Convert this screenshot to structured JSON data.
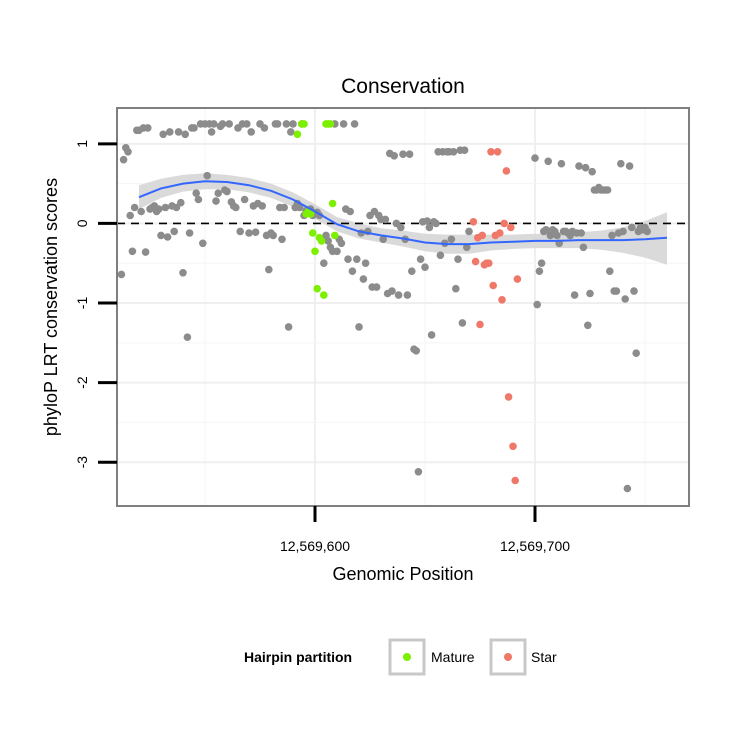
{
  "chart_data": {
    "type": "scatter",
    "title": "Conservation",
    "xlabel": "Genomic Position",
    "ylabel": "phyloP LRT conservation scores",
    "xlim": [
      12569510,
      12569770
    ],
    "ylim": [
      -3.55,
      1.45
    ],
    "x_ticks": [
      {
        "value": 12569600,
        "label": "12,569,600"
      },
      {
        "value": 12569700,
        "label": "12,569,700"
      }
    ],
    "y_ticks": [
      {
        "value": 1,
        "label": "1"
      },
      {
        "value": 0,
        "label": "0"
      },
      {
        "value": -1,
        "label": "-1"
      },
      {
        "value": -2,
        "label": "-2"
      },
      {
        "value": -3,
        "label": "-3"
      }
    ],
    "grid": true,
    "reference_line": {
      "y": 0,
      "style": "dashed"
    },
    "legend": {
      "title": "Hairpin partition",
      "position": "bottom",
      "entries": [
        {
          "label": "Mature",
          "color": "#7cf000"
        },
        {
          "label": "Star",
          "color": "#f07868"
        }
      ]
    },
    "colors": {
      "other": "#8c8c8c",
      "mature": "#7cf000",
      "star": "#f07868",
      "smooth_line": "#3366ff",
      "confidence_band": "#d6d6d6"
    },
    "smooth_line": {
      "x": [
        12569520,
        12569530,
        12569540,
        12569550,
        12569560,
        12569570,
        12569580,
        12569590,
        12569600,
        12569610,
        12569620,
        12569630,
        12569640,
        12569650,
        12569660,
        12569670,
        12569680,
        12569690,
        12569700,
        12569710,
        12569720,
        12569730,
        12569740,
        12569750,
        12569760
      ],
      "y": [
        0.33,
        0.44,
        0.5,
        0.53,
        0.52,
        0.48,
        0.41,
        0.3,
        0.15,
        -0.01,
        -0.1,
        -0.15,
        -0.19,
        -0.24,
        -0.26,
        -0.26,
        -0.24,
        -0.23,
        -0.22,
        -0.22,
        -0.21,
        -0.21,
        -0.21,
        -0.2,
        -0.18
      ],
      "lower": [
        0.18,
        0.32,
        0.4,
        0.43,
        0.43,
        0.39,
        0.32,
        0.21,
        0.06,
        -0.1,
        -0.19,
        -0.24,
        -0.29,
        -0.35,
        -0.38,
        -0.38,
        -0.34,
        -0.32,
        -0.31,
        -0.31,
        -0.31,
        -0.33,
        -0.37,
        -0.43,
        -0.52
      ],
      "upper": [
        0.48,
        0.56,
        0.61,
        0.63,
        0.61,
        0.57,
        0.5,
        0.39,
        0.24,
        0.08,
        0.0,
        -0.06,
        -0.09,
        -0.13,
        -0.14,
        -0.14,
        -0.14,
        -0.14,
        -0.13,
        -0.13,
        -0.11,
        -0.09,
        -0.05,
        0.03,
        0.14
      ]
    },
    "series": [
      {
        "group": "other",
        "points": [
          [
            12569512,
            -0.64
          ],
          [
            12569513,
            0.8
          ],
          [
            12569514,
            0.95
          ],
          [
            12569515,
            0.9
          ],
          [
            12569516,
            0.1
          ],
          [
            12569517,
            -0.35
          ],
          [
            12569518,
            0.2
          ],
          [
            12569519,
            1.17
          ],
          [
            12569520,
            1.17
          ],
          [
            12569521,
            0.15
          ],
          [
            12569522,
            1.2
          ],
          [
            12569523,
            -0.36
          ],
          [
            12569524,
            1.2
          ],
          [
            12569525,
            0.18
          ],
          [
            12569526,
            0.2
          ],
          [
            12569527,
            0.22
          ],
          [
            12569528,
            0.15
          ],
          [
            12569529,
            0.18
          ],
          [
            12569530,
            -0.15
          ],
          [
            12569531,
            1.12
          ],
          [
            12569532,
            0.2
          ],
          [
            12569533,
            -0.17
          ],
          [
            12569534,
            1.15
          ],
          [
            12569535,
            0.22
          ],
          [
            12569536,
            -0.1
          ],
          [
            12569537,
            0.2
          ],
          [
            12569538,
            1.15
          ],
          [
            12569539,
            0.26
          ],
          [
            12569540,
            -0.62
          ],
          [
            12569541,
            1.12
          ],
          [
            12569542,
            -1.43
          ],
          [
            12569543,
            -0.12
          ],
          [
            12569544,
            1.2
          ],
          [
            12569545,
            1.2
          ],
          [
            12569546,
            0.38
          ],
          [
            12569547,
            0.3
          ],
          [
            12569548,
            1.25
          ],
          [
            12569549,
            -0.25
          ],
          [
            12569550,
            1.25
          ],
          [
            12569551,
            0.6
          ],
          [
            12569552,
            1.25
          ],
          [
            12569553,
            1.15
          ],
          [
            12569554,
            1.25
          ],
          [
            12569555,
            0.28
          ],
          [
            12569556,
            0.38
          ],
          [
            12569557,
            1.22
          ],
          [
            12569558,
            1.25
          ],
          [
            12569559,
            0.42
          ],
          [
            12569560,
            0.4
          ],
          [
            12569561,
            1.25
          ],
          [
            12569562,
            0.27
          ],
          [
            12569563,
            0.22
          ],
          [
            12569564,
            0.2
          ],
          [
            12569565,
            1.2
          ],
          [
            12569566,
            -0.1
          ],
          [
            12569567,
            1.25
          ],
          [
            12569568,
            0.3
          ],
          [
            12569569,
            1.25
          ],
          [
            12569570,
            -0.12
          ],
          [
            12569571,
            1.15
          ],
          [
            12569572,
            0.22
          ],
          [
            12569573,
            -0.11
          ],
          [
            12569574,
            0.25
          ],
          [
            12569575,
            1.25
          ],
          [
            12569576,
            0.22
          ],
          [
            12569577,
            1.2
          ],
          [
            12569578,
            -0.15
          ],
          [
            12569579,
            -0.58
          ],
          [
            12569580,
            -0.12
          ],
          [
            12569581,
            -0.15
          ],
          [
            12569582,
            1.25
          ],
          [
            12569583,
            1.25
          ],
          [
            12569584,
            0.2
          ],
          [
            12569585,
            -0.2
          ],
          [
            12569586,
            0.2
          ],
          [
            12569587,
            1.25
          ],
          [
            12569588,
            -1.3
          ],
          [
            12569589,
            1.15
          ],
          [
            12569590,
            1.25
          ],
          [
            12569591,
            0.2
          ],
          [
            12569592,
            0.25
          ],
          [
            12569593,
            0.2
          ],
          [
            12569594,
            1.25
          ],
          [
            12569595,
            0.1
          ],
          [
            12569596,
            0.16
          ],
          [
            12569597,
            0.15
          ],
          [
            12569598,
            0.18
          ],
          [
            12569599,
            0.1
          ],
          [
            12569600,
            0.12
          ],
          [
            12569601,
            0.14
          ],
          [
            12569602,
            0.1
          ],
          [
            12569603,
            -0.2
          ],
          [
            12569604,
            -0.5
          ],
          [
            12569605,
            -0.15
          ],
          [
            12569606,
            -0.22
          ],
          [
            12569607,
            -0.3
          ],
          [
            12569608,
            -0.35
          ],
          [
            12569609,
            1.25
          ],
          [
            12569610,
            -0.35
          ],
          [
            12569611,
            -0.2
          ],
          [
            12569612,
            -0.25
          ],
          [
            12569613,
            1.25
          ],
          [
            12569614,
            0.18
          ],
          [
            12569615,
            -0.45
          ],
          [
            12569616,
            0.15
          ],
          [
            12569617,
            -0.6
          ],
          [
            12569618,
            1.25
          ],
          [
            12569619,
            -0.45
          ],
          [
            12569620,
            -1.3
          ],
          [
            12569621,
            -0.12
          ],
          [
            12569622,
            -0.7
          ],
          [
            12569623,
            -0.5
          ],
          [
            12569624,
            -0.1
          ],
          [
            12569625,
            0.1
          ],
          [
            12569626,
            -0.8
          ],
          [
            12569627,
            0.15
          ],
          [
            12569628,
            -0.8
          ],
          [
            12569629,
            0.1
          ],
          [
            12569630,
            0.05
          ],
          [
            12569631,
            -0.2
          ],
          [
            12569632,
            0.05
          ],
          [
            12569633,
            -0.88
          ],
          [
            12569634,
            0.88
          ],
          [
            12569635,
            -0.85
          ],
          [
            12569636,
            0.85
          ],
          [
            12569637,
            0.0
          ],
          [
            12569638,
            -0.9
          ],
          [
            12569639,
            -0.05
          ],
          [
            12569640,
            0.87
          ],
          [
            12569641,
            -0.2
          ],
          [
            12569642,
            -0.9
          ],
          [
            12569643,
            0.87
          ],
          [
            12569644,
            -0.6
          ],
          [
            12569645,
            -1.58
          ],
          [
            12569646,
            -1.6
          ],
          [
            12569647,
            -3.12
          ],
          [
            12569648,
            -0.45
          ],
          [
            12569649,
            0.02
          ],
          [
            12569650,
            -0.55
          ],
          [
            12569651,
            0.03
          ],
          [
            12569652,
            -0.05
          ],
          [
            12569653,
            -1.4
          ],
          [
            12569654,
            0.02
          ],
          [
            12569655,
            0.0
          ],
          [
            12569656,
            0.9
          ],
          [
            12569657,
            -0.4
          ],
          [
            12569658,
            0.9
          ],
          [
            12569659,
            -0.25
          ],
          [
            12569660,
            0.9
          ],
          [
            12569661,
            0.9
          ],
          [
            12569662,
            -0.2
          ],
          [
            12569663,
            0.9
          ],
          [
            12569664,
            -0.82
          ],
          [
            12569665,
            -0.45
          ],
          [
            12569666,
            0.92
          ],
          [
            12569667,
            -1.25
          ],
          [
            12569668,
            0.92
          ],
          [
            12569669,
            -0.3
          ],
          [
            12569670,
            -0.1
          ],
          [
            12569700,
            0.82
          ],
          [
            12569701,
            -1.02
          ],
          [
            12569702,
            -0.6
          ],
          [
            12569703,
            -0.5
          ],
          [
            12569704,
            -0.1
          ],
          [
            12569705,
            -0.08
          ],
          [
            12569706,
            0.78
          ],
          [
            12569707,
            -0.15
          ],
          [
            12569708,
            -0.08
          ],
          [
            12569709,
            -0.1
          ],
          [
            12569710,
            -0.15
          ],
          [
            12569711,
            -0.25
          ],
          [
            12569712,
            0.75
          ],
          [
            12569713,
            -0.1
          ],
          [
            12569714,
            -0.1
          ],
          [
            12569715,
            -0.12
          ],
          [
            12569716,
            -0.15
          ],
          [
            12569717,
            -0.1
          ],
          [
            12569718,
            -0.9
          ],
          [
            12569719,
            -0.12
          ],
          [
            12569720,
            0.72
          ],
          [
            12569721,
            -0.12
          ],
          [
            12569722,
            -0.3
          ],
          [
            12569723,
            0.7
          ],
          [
            12569724,
            -1.28
          ],
          [
            12569725,
            -0.88
          ],
          [
            12569726,
            0.65
          ],
          [
            12569727,
            0.42
          ],
          [
            12569728,
            0.42
          ],
          [
            12569729,
            0.45
          ],
          [
            12569730,
            0.42
          ],
          [
            12569731,
            0.42
          ],
          [
            12569732,
            0.42
          ],
          [
            12569733,
            0.42
          ],
          [
            12569734,
            -0.6
          ],
          [
            12569735,
            -0.15
          ],
          [
            12569736,
            -0.85
          ],
          [
            12569737,
            -0.85
          ],
          [
            12569738,
            -0.12
          ],
          [
            12569739,
            0.75
          ],
          [
            12569740,
            -0.1
          ],
          [
            12569741,
            -0.95
          ],
          [
            12569742,
            -3.33
          ],
          [
            12569743,
            0.72
          ],
          [
            12569744,
            -0.05
          ],
          [
            12569745,
            -0.85
          ],
          [
            12569746,
            -1.63
          ],
          [
            12569747,
            -0.1
          ],
          [
            12569748,
            -0.05
          ],
          [
            12569749,
            -0.08
          ],
          [
            12569750,
            -0.05
          ],
          [
            12569751,
            -0.1
          ]
        ]
      },
      {
        "group": "mature",
        "points": [
          [
            12569592,
            1.12
          ],
          [
            12569594,
            1.25
          ],
          [
            12569595,
            1.25
          ],
          [
            12569596,
            0.12
          ],
          [
            12569597,
            0.15
          ],
          [
            12569598,
            0.12
          ],
          [
            12569599,
            -0.12
          ],
          [
            12569600,
            -0.35
          ],
          [
            12569601,
            -0.82
          ],
          [
            12569602,
            -0.18
          ],
          [
            12569603,
            -0.22
          ],
          [
            12569604,
            -0.9
          ],
          [
            12569605,
            1.25
          ],
          [
            12569606,
            1.25
          ],
          [
            12569607,
            1.25
          ],
          [
            12569608,
            0.25
          ],
          [
            12569609,
            -0.15
          ]
        ]
      },
      {
        "group": "star",
        "points": [
          [
            12569672,
            0.02
          ],
          [
            12569673,
            -0.48
          ],
          [
            12569674,
            -0.18
          ],
          [
            12569675,
            -1.27
          ],
          [
            12569676,
            -0.15
          ],
          [
            12569677,
            -0.52
          ],
          [
            12569678,
            -0.5
          ],
          [
            12569679,
            -0.5
          ],
          [
            12569680,
            0.9
          ],
          [
            12569681,
            -0.78
          ],
          [
            12569682,
            -0.15
          ],
          [
            12569683,
            0.9
          ],
          [
            12569684,
            -0.12
          ],
          [
            12569685,
            -0.96
          ],
          [
            12569686,
            0.0
          ],
          [
            12569687,
            0.66
          ],
          [
            12569688,
            -2.18
          ],
          [
            12569689,
            -0.05
          ],
          [
            12569690,
            -2.8
          ],
          [
            12569691,
            -3.23
          ],
          [
            12569692,
            -0.7
          ]
        ]
      }
    ]
  }
}
